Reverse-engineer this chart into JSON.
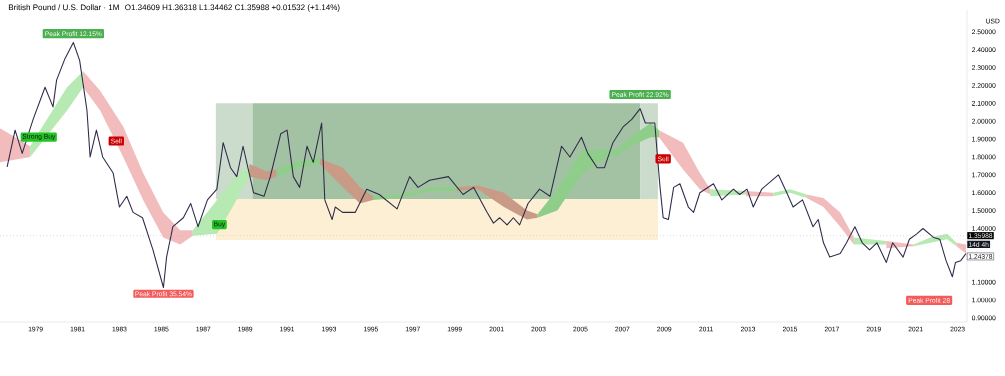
{
  "chart_data": {
    "type": "line",
    "title": "British Pound / U.S. Dollar · 1M",
    "subtitle": "O1.34609  H1.36318  L1.34462  C1.35988  +0.01532 (+1.14%)",
    "ylabel": "USD",
    "xlim": [
      1977.3,
      2023.45
    ],
    "ylim": [
      0.877,
      2.622
    ],
    "xticks": [
      1979,
      1981,
      1983,
      1985,
      1987,
      1989,
      1991,
      1993,
      1995,
      1997,
      1999,
      2001,
      2003,
      2005,
      2007,
      2009,
      2011,
      2013,
      2015,
      2017,
      2019,
      2021,
      2023
    ],
    "yticks": [
      {
        "value": 0.9,
        "label": "0.90000"
      },
      {
        "value": 1.0,
        "label": "1.00000"
      },
      {
        "value": 1.1,
        "label": "1.10000"
      },
      {
        "value": 1.4,
        "label": "1.40000"
      },
      {
        "value": 1.5,
        "label": "1.50000"
      },
      {
        "value": 1.6,
        "label": "1.60000"
      },
      {
        "value": 1.7,
        "label": "1.70000"
      },
      {
        "value": 1.8,
        "label": "1.80000"
      },
      {
        "value": 1.9,
        "label": "1.90000"
      },
      {
        "value": 2.0,
        "label": "2.00000"
      },
      {
        "value": 2.1,
        "label": "2.10000"
      },
      {
        "value": 2.2,
        "label": "2.20000"
      },
      {
        "value": 2.3,
        "label": "2.30000"
      },
      {
        "value": 2.4,
        "label": "2.40000"
      },
      {
        "value": 2.5,
        "label": "2.50000"
      }
    ],
    "series": [
      {
        "color": "#ccdccc",
        "x": [
          1987.6,
          1989.35
        ],
        "values": [
          null,
          null
        ],
        "lower": [
          1.565,
          1.565
        ],
        "upper": [
          2.1,
          2.1
        ]
      },
      {
        "color": "#a3c2a3",
        "x": [
          1989.35,
          2007.85
        ],
        "values": [
          null,
          null
        ],
        "lower": [
          1.565,
          1.565
        ],
        "upper": [
          2.1,
          2.1
        ]
      },
      {
        "color": "#ccdccc",
        "x": [
          2007.85,
          2008.7
        ],
        "values": [
          null,
          null
        ],
        "lower": [
          1.565,
          1.565
        ],
        "upper": [
          2.1,
          2.1
        ]
      },
      {
        "color": "#fdefd3",
        "x": [
          1987.6,
          2008.7
        ],
        "values": [
          null,
          null
        ],
        "lower": [
          1.335,
          1.335
        ],
        "upper": [
          1.565,
          1.565
        ]
      },
      {
        "color": "#f2bcbc",
        "x": [
          1977.3,
          1978.74
        ],
        "values": [
          null,
          null
        ],
        "lower": [
          1.77,
          1.8
        ],
        "upper": [
          1.96,
          1.86
        ]
      },
      {
        "color": "#b7eab3",
        "x": [
          1978.74,
          1980.5,
          1981.27
        ],
        "values": [
          null,
          null,
          null
        ],
        "lower": [
          1.8,
          2.06,
          2.19
        ],
        "upper": [
          1.86,
          2.19,
          2.28
        ]
      },
      {
        "color": "#f2bcbc",
        "x": [
          1981.27,
          1982.08,
          1983.18,
          1984.13,
          1985.09,
          1985.9,
          1986.5
        ],
        "values": [
          null,
          null,
          null,
          null,
          null,
          null,
          null
        ],
        "lower": [
          2.19,
          2.06,
          1.8,
          1.56,
          1.35,
          1.31,
          1.36
        ],
        "upper": [
          2.28,
          2.17,
          1.97,
          1.71,
          1.49,
          1.39,
          1.39
        ]
      },
      {
        "color": "#b7eab3",
        "x": [
          1986.5,
          1987.66,
          1988.4,
          1989.2
        ],
        "values": [
          null,
          null,
          null,
          null
        ],
        "lower": [
          1.36,
          1.37,
          1.52,
          1.69
        ],
        "upper": [
          1.39,
          1.56,
          1.67,
          1.76
        ]
      },
      {
        "color": "#c99a86",
        "x": [
          1989.2,
          1990.0,
          1990.5
        ],
        "values": [
          null,
          null,
          null
        ],
        "lower": [
          1.69,
          1.67,
          1.69
        ],
        "upper": [
          1.76,
          1.72,
          1.73
        ]
      },
      {
        "color": "#8fce8a",
        "x": [
          1990.5,
          1991.6,
          1992.57
        ],
        "values": [
          null,
          null,
          null
        ],
        "lower": [
          1.69,
          1.74,
          1.76
        ],
        "upper": [
          1.73,
          1.78,
          1.79
        ]
      },
      {
        "color": "#c99a86",
        "x": [
          1992.57,
          1993.67,
          1994.48,
          1995.1
        ],
        "values": [
          null,
          null,
          null,
          null
        ],
        "lower": [
          1.76,
          1.63,
          1.54,
          1.56
        ],
        "upper": [
          1.79,
          1.74,
          1.63,
          1.58
        ]
      },
      {
        "color": "#8fce8a",
        "x": [
          1995.1,
          1996.3,
          1997.9,
          1999.1
        ],
        "values": [
          null,
          null,
          null,
          null
        ],
        "lower": [
          1.56,
          1.57,
          1.61,
          1.61
        ],
        "upper": [
          1.58,
          1.59,
          1.63,
          1.63
        ]
      },
      {
        "color": "#c99a86",
        "x": [
          1999.1,
          2000.1,
          2001.35,
          2002.45,
          2002.95
        ],
        "values": [
          null,
          null,
          null,
          null,
          null
        ],
        "lower": [
          1.61,
          1.62,
          1.52,
          1.45,
          1.46
        ],
        "upper": [
          1.63,
          1.64,
          1.6,
          1.5,
          1.48
        ]
      },
      {
        "color": "#8fce8a",
        "x": [
          2002.95,
          2003.9,
          2005.1,
          2006.3,
          2006.75
        ],
        "values": [
          null,
          null,
          null,
          null,
          null
        ],
        "lower": [
          1.46,
          1.5,
          1.71,
          1.8,
          1.81
        ],
        "upper": [
          1.48,
          1.62,
          1.84,
          1.84,
          1.84
        ]
      },
      {
        "color": "#8fce8a",
        "x": [
          2006.75,
          2007.4,
          2008.35,
          2008.75
        ],
        "values": [
          null,
          null,
          null,
          null
        ],
        "lower": [
          1.81,
          1.86,
          1.91,
          1.91
        ],
        "upper": [
          1.84,
          1.91,
          1.99,
          1.95
        ]
      },
      {
        "color": "#f2bcbc",
        "x": [
          2008.75,
          2009.9,
          2010.7,
          2011.2
        ],
        "values": [
          null,
          null,
          null,
          null
        ],
        "lower": [
          1.91,
          1.73,
          1.62,
          1.59
        ],
        "upper": [
          1.95,
          1.88,
          1.71,
          1.62
        ]
      },
      {
        "color": "#b7eab3",
        "x": [
          2011.2,
          2012.9
        ],
        "values": [
          null,
          null
        ],
        "lower": [
          1.58,
          1.59
        ],
        "upper": [
          1.62,
          1.61
        ]
      },
      {
        "color": "#f2bcbc",
        "x": [
          2012.9,
          2014.2
        ],
        "values": [
          null,
          null
        ],
        "lower": [
          1.58,
          1.58
        ],
        "upper": [
          1.61,
          1.6
        ]
      },
      {
        "color": "#b7eab3",
        "x": [
          2014.2,
          2015.0,
          2015.8
        ],
        "values": [
          null,
          null,
          null
        ],
        "lower": [
          1.58,
          1.6,
          1.57
        ],
        "upper": [
          1.6,
          1.62,
          1.59
        ]
      },
      {
        "color": "#f2bcbc",
        "x": [
          2015.8,
          2016.6,
          2017.4,
          2018.05
        ],
        "values": [
          null,
          null,
          null,
          null
        ],
        "lower": [
          1.57,
          1.52,
          1.41,
          1.31
        ],
        "upper": [
          1.59,
          1.57,
          1.49,
          1.35
        ]
      },
      {
        "color": "#b7eab3",
        "x": [
          2018.05,
          2019.6
        ],
        "values": [
          null,
          null
        ],
        "lower": [
          1.31,
          1.31
        ],
        "upper": [
          1.35,
          1.33
        ]
      },
      {
        "color": "#f2bcbc",
        "x": [
          2019.6,
          2020.9
        ],
        "values": [
          null,
          null
        ],
        "lower": [
          1.29,
          1.3
        ],
        "upper": [
          1.33,
          1.31
        ]
      },
      {
        "color": "#b7eab3",
        "x": [
          2020.9,
          2021.7,
          2022.5,
          2022.95
        ],
        "values": [
          null,
          null,
          null,
          null
        ],
        "lower": [
          1.3,
          1.32,
          1.34,
          1.3
        ],
        "upper": [
          1.31,
          1.35,
          1.37,
          1.32
        ]
      },
      {
        "color": "#f2bcbc",
        "x": [
          2022.95,
          2023.4
        ],
        "values": [
          null,
          null
        ],
        "lower": [
          1.3,
          1.26
        ],
        "upper": [
          1.32,
          1.31
        ]
      },
      {
        "color": "#2e2a4a",
        "x": [
          1977.64,
          1978.02,
          1978.36,
          1978.88,
          1979.45,
          1979.83,
          1980.0,
          1980.4,
          1980.8,
          1981.1,
          1981.45,
          1981.6,
          1981.9,
          1982.2,
          1982.7,
          1983.0,
          1983.35,
          1983.65,
          1984.1,
          1984.6,
          1985.1,
          1985.25,
          1985.55,
          1986.05,
          1986.4,
          1986.75,
          1987.2,
          1987.65,
          1987.95,
          1988.3,
          1988.6,
          1988.9,
          1989.4,
          1989.9,
          1990.2,
          1990.7,
          1991.0,
          1991.3,
          1991.6,
          1991.95,
          1992.25,
          1992.65,
          1992.8,
          1993.15,
          1993.3,
          1993.65,
          1994.25,
          1994.8,
          1995.4,
          1996.25,
          1996.85,
          1997.25,
          1997.8,
          1998.7,
          1999.4,
          1999.9,
          2000.55,
          2000.85,
          2001.15,
          2001.5,
          2001.8,
          2002.1,
          2002.5,
          2003.05,
          2003.55,
          2004.1,
          2004.5,
          2005.05,
          2005.35,
          2005.8,
          2006.15,
          2006.55,
          2007.05,
          2007.45,
          2007.85,
          2008.1,
          2008.55,
          2008.65,
          2008.8,
          2008.95,
          2009.2,
          2009.45,
          2009.75,
          2010.15,
          2010.4,
          2010.7,
          2011.35,
          2011.75,
          2012.3,
          2012.6,
          2012.95,
          2013.25,
          2013.65,
          2014.45,
          2014.85,
          2015.15,
          2015.6,
          2016.1,
          2016.35,
          2016.6,
          2016.9,
          2017.4,
          2017.7,
          2018.1,
          2018.45,
          2018.8,
          2019.15,
          2019.6,
          2019.9,
          2020.4,
          2020.7,
          2021.05,
          2021.35,
          2021.85,
          2022.15,
          2022.45,
          2022.75,
          2022.9,
          2023.15,
          2023.4
        ],
        "values": [
          1.744,
          1.95,
          1.82,
          2.01,
          2.19,
          2.08,
          2.23,
          2.35,
          2.44,
          2.34,
          2.06,
          1.8,
          1.95,
          1.8,
          1.71,
          1.52,
          1.58,
          1.49,
          1.46,
          1.28,
          1.07,
          1.24,
          1.41,
          1.46,
          1.54,
          1.41,
          1.56,
          1.62,
          1.88,
          1.74,
          1.69,
          1.86,
          1.6,
          1.58,
          1.69,
          1.93,
          1.95,
          1.69,
          1.63,
          1.86,
          1.77,
          1.99,
          1.56,
          1.45,
          1.52,
          1.49,
          1.49,
          1.62,
          1.59,
          1.51,
          1.69,
          1.63,
          1.67,
          1.69,
          1.59,
          1.63,
          1.49,
          1.43,
          1.46,
          1.42,
          1.46,
          1.42,
          1.54,
          1.62,
          1.58,
          1.86,
          1.8,
          1.91,
          1.82,
          1.74,
          1.74,
          1.88,
          1.97,
          2.01,
          2.07,
          1.99,
          1.99,
          1.84,
          1.63,
          1.46,
          1.45,
          1.63,
          1.65,
          1.52,
          1.49,
          1.6,
          1.65,
          1.56,
          1.62,
          1.59,
          1.62,
          1.52,
          1.62,
          1.7,
          1.6,
          1.52,
          1.56,
          1.41,
          1.45,
          1.32,
          1.24,
          1.26,
          1.32,
          1.41,
          1.32,
          1.28,
          1.32,
          1.21,
          1.32,
          1.24,
          1.34,
          1.37,
          1.4,
          1.35,
          1.34,
          1.22,
          1.13,
          1.21,
          1.22,
          1.26
        ]
      }
    ],
    "ref_lines": [
      {
        "axis": "y",
        "value": 1.35988,
        "label": "1.35988",
        "color": "#b2b5be",
        "line_style": "dotted"
      }
    ],
    "annotations": [
      {
        "text": "Peak Profit 12.15%",
        "x": 1980.8,
        "y": 2.44
      },
      {
        "text": "Strong Buy",
        "x": 1979.15,
        "y": 1.95
      },
      {
        "text": "Sell",
        "x": 1982.85,
        "y": 1.84
      },
      {
        "text": "Peak Profit 35.54%",
        "x": 1985.1,
        "y": 1.07
      },
      {
        "text": "Buy",
        "x": 1987.77,
        "y": 1.46
      },
      {
        "text": "Peak Profit 22.92%",
        "x": 2007.85,
        "y": 2.1
      },
      {
        "text": "Sell",
        "x": 2008.95,
        "y": 1.74
      },
      "Peak Profit 28",
      {
        "text": "14d 4h",
        "x": 2023.45,
        "y": 1.35988
      },
      {
        "text": "1.24378",
        "x": 2023.45,
        "y": 1.24378
      }
    ]
  }
}
